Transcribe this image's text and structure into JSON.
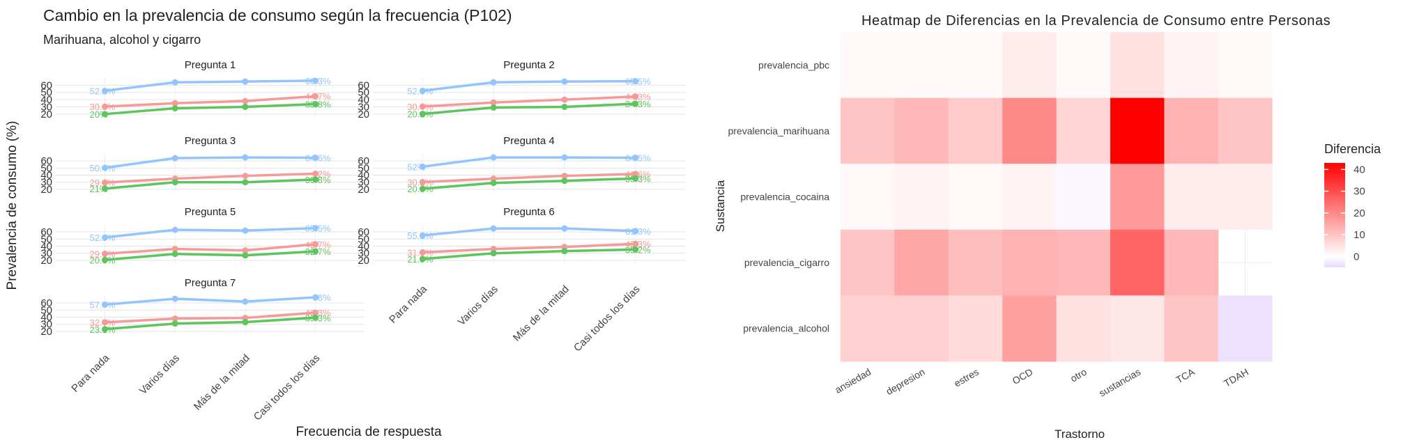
{
  "chart_data": [
    {
      "type": "line",
      "title": "Cambio en la prevalencia de consumo según la frecuencia (P102)",
      "subtitle": "Marihuana, alcohol y cigarro",
      "xlabel": "Frecuencia de respuesta",
      "ylabel": "Prevalencia de consumo (%)",
      "categories": [
        "Para nada",
        "Varios días",
        "Más de la mitad",
        "Casi todos los días"
      ],
      "ylim": [
        15,
        70
      ],
      "yticks": [
        20,
        30,
        40,
        50,
        60
      ],
      "grid": true,
      "legend": "none",
      "series_colors": [
        "#93C5FD",
        "#F59A98",
        "#5EC45E"
      ],
      "panels": [
        {
          "title": "Pregunta 1",
          "series": [
            {
              "values": [
                52.2,
                64.0,
                65.0,
                66.3
              ],
              "first_label": "52.2%",
              "last_label": "66.3%"
            },
            {
              "values": [
                30.3,
                35.0,
                38.0,
                44.7
              ],
              "first_label": "30.3%",
              "last_label": "44.7%"
            },
            {
              "values": [
                20.0,
                28.0,
                30.0,
                33.8
              ],
              "first_label": "20%",
              "last_label": "33.8%"
            }
          ]
        },
        {
          "title": "Pregunta 2",
          "series": [
            {
              "values": [
                52.3,
                64.0,
                65.0,
                65.5
              ],
              "first_label": "52.3%",
              "last_label": "65.5%"
            },
            {
              "values": [
                30.4,
                36.0,
                40.0,
                44.3
              ],
              "first_label": "30.4%",
              "last_label": "44.3%"
            },
            {
              "values": [
                20.2,
                29.0,
                30.0,
                34.3
              ],
              "first_label": "20.2%",
              "last_label": "34.3%"
            }
          ]
        },
        {
          "title": "Pregunta 3",
          "series": [
            {
              "values": [
                50.4,
                64.0,
                65.0,
                64.6
              ],
              "first_label": "50.4%",
              "last_label": "64.6%"
            },
            {
              "values": [
                29.6,
                35.0,
                39.0,
                42.0
              ],
              "first_label": "29.6%",
              "last_label": "42%"
            },
            {
              "values": [
                21.0,
                30.0,
                30.0,
                33.8
              ],
              "first_label": "21%",
              "last_label": "33.8%"
            }
          ]
        },
        {
          "title": "Pregunta 4",
          "series": [
            {
              "values": [
                52.0,
                65.0,
                65.0,
                64.5
              ],
              "first_label": "52%",
              "last_label": "64.5%"
            },
            {
              "values": [
                30.2,
                35.0,
                39.0,
                41.6
              ],
              "first_label": "30.2%",
              "last_label": "41.6%"
            },
            {
              "values": [
                20.8,
                29.0,
                32.0,
                35.3
              ],
              "first_label": "20.8%",
              "last_label": "35.3%"
            }
          ]
        },
        {
          "title": "Pregunta 5",
          "series": [
            {
              "values": [
                52.3,
                63.0,
                62.0,
                65.5
              ],
              "first_label": "52.3%",
              "last_label": "65.5%"
            },
            {
              "values": [
                29.3,
                36.0,
                34.0,
                42.7
              ],
              "first_label": "29.3%",
              "last_label": "42.7%"
            },
            {
              "values": [
                20.6,
                29.0,
                27.0,
                32.7
              ],
              "first_label": "20.6%",
              "last_label": "32.7%"
            }
          ]
        },
        {
          "title": "Pregunta 6",
          "series": [
            {
              "values": [
                55.1,
                65.0,
                65.0,
                61.3
              ],
              "first_label": "55.1%",
              "last_label": "61.3%"
            },
            {
              "values": [
                31.3,
                36.0,
                39.0,
                43.3
              ],
              "first_label": "31.3%",
              "last_label": "43.3%"
            },
            {
              "values": [
                21.9,
                30.0,
                33.0,
                35.2
              ],
              "first_label": "21.9%",
              "last_label": "35.2%"
            }
          ]
        },
        {
          "title": "Pregunta 7",
          "series": [
            {
              "values": [
                57.7,
                66.0,
                62.0,
                68.0
              ],
              "first_label": "57.7%",
              "last_label": "68%"
            },
            {
              "values": [
                32.7,
                38.0,
                39.0,
                46.3
              ],
              "first_label": "32.7%",
              "last_label": "46.3%"
            },
            {
              "values": [
                23.1,
                31.0,
                33.0,
                39.3
              ],
              "first_label": "23.1%",
              "last_label": "39.3%"
            }
          ]
        }
      ]
    },
    {
      "type": "heatmap",
      "title": "Heatmap de Diferencias en la Prevalencia de Consumo entre Personas",
      "xlabel": "Trastorno",
      "ylabel": "Sustancia",
      "x": [
        "ansiedad",
        "depresion",
        "estres",
        "OCD",
        "otro",
        "sustancias",
        "TCA",
        "TDAH"
      ],
      "y": [
        "prevalencia_pbc",
        "prevalencia_marihuana",
        "prevalencia_cocaina",
        "prevalencia_cigarro",
        "prevalencia_alcohol"
      ],
      "values": [
        [
          1,
          1,
          1,
          3,
          1,
          5,
          2,
          1
        ],
        [
          10,
          12,
          9,
          20,
          7,
          43,
          13,
          10
        ],
        [
          1,
          2,
          1,
          2,
          -1,
          17,
          3,
          3
        ],
        [
          10,
          15,
          11,
          13,
          12,
          26,
          12,
          null
        ],
        [
          8,
          8,
          6,
          16,
          5,
          4,
          10,
          -4
        ]
      ],
      "legend": {
        "title": "Diferencia",
        "ticks": [
          0,
          10,
          20,
          30,
          40
        ],
        "range": [
          -5,
          43
        ],
        "position": "right"
      },
      "color_scale": {
        "low": "#E8D9FF",
        "mid": "#FFFFFF",
        "high": "#FF0000"
      }
    }
  ]
}
